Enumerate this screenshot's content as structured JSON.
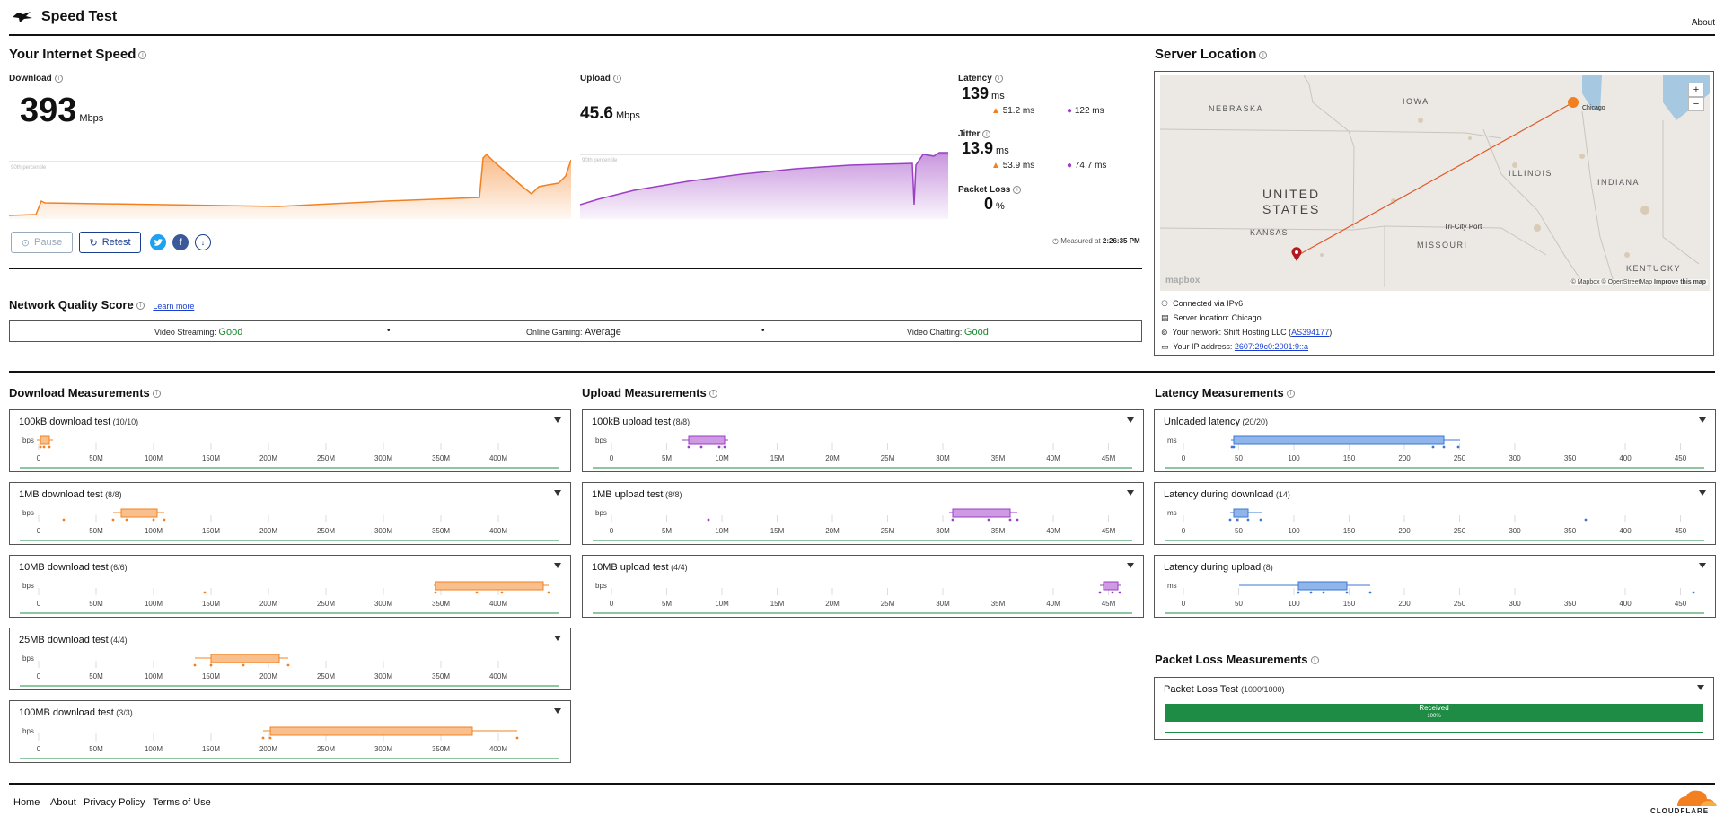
{
  "header": {
    "title": "Speed Test",
    "about": "About"
  },
  "speed": {
    "title": "Your Internet Speed",
    "download_label": "Download",
    "download_value": "393",
    "download_unit": "Mbps",
    "upload_label": "Upload",
    "upload_value": "45.6",
    "upload_unit": "Mbps",
    "percentile_label": "90th percentile",
    "latency_label": "Latency",
    "latency_value": "139",
    "latency_unit": "ms",
    "latency_down": "51.2 ms",
    "latency_up": "122 ms",
    "jitter_label": "Jitter",
    "jitter_value": "13.9",
    "jitter_unit": "ms",
    "jitter_down": "53.9 ms",
    "jitter_up": "74.7 ms",
    "loss_label": "Packet Loss",
    "loss_value": "0",
    "loss_unit": "%",
    "pause_label": "Pause",
    "retest_label": "Retest",
    "measured_prefix": "Measured at",
    "measured_time": "2:26:35 PM"
  },
  "server": {
    "title": "Server Location",
    "map_labels": {
      "nebraska": "NEBRASKA",
      "iowa": "IOWA",
      "united": "UNITED",
      "states": "STATES",
      "kansas": "KANSAS",
      "illinois": "ILLINOIS",
      "indiana": "INDIANA",
      "missouri": "MISSOURI",
      "kentucky": "KENTUCKY",
      "tricity": "Tri-City Port",
      "chicago": "Chicago",
      "zoom_in": "+",
      "zoom_out": "−",
      "mapbox": "mapbox",
      "attribution": "© Mapbox © OpenStreetMap",
      "improve": "Improve this map"
    },
    "connected": "Connected via IPv6",
    "location_prefix": "Server location:",
    "location_value": "Chicago",
    "network_prefix": "Your network:",
    "network_value": "Shift Hosting LLC (",
    "network_asn": "AS394177",
    "network_close": ")",
    "ip_prefix": "Your IP address:",
    "ip_value": "2607:29c0:2001:9::a"
  },
  "quality": {
    "title": "Network Quality Score",
    "learn_more": "Learn more",
    "streaming_label": "Video Streaming:",
    "streaming_value": "Good",
    "gaming_label": "Online Gaming:",
    "gaming_value": "Average",
    "chatting_label": "Video Chatting:",
    "chatting_value": "Good",
    "dot": "•"
  },
  "download_measurements": {
    "title": "Download Measurements",
    "unit": "bps",
    "ticks": [
      "0",
      "50M",
      "100M",
      "150M",
      "200M",
      "250M",
      "300M",
      "350M",
      "400M"
    ],
    "tests": [
      {
        "name": "100kB download test",
        "count": "(10/10)"
      },
      {
        "name": "1MB download test",
        "count": "(8/8)"
      },
      {
        "name": "10MB download test",
        "count": "(6/6)"
      },
      {
        "name": "25MB download test",
        "count": "(4/4)"
      },
      {
        "name": "100MB download test",
        "count": "(3/3)"
      }
    ]
  },
  "upload_measurements": {
    "title": "Upload Measurements",
    "unit": "bps",
    "ticks": [
      "0",
      "5M",
      "10M",
      "15M",
      "20M",
      "25M",
      "30M",
      "35M",
      "40M",
      "45M"
    ],
    "tests": [
      {
        "name": "100kB upload test",
        "count": "(8/8)"
      },
      {
        "name": "1MB upload test",
        "count": "(8/8)"
      },
      {
        "name": "10MB upload test",
        "count": "(4/4)"
      }
    ]
  },
  "latency_measurements": {
    "title": "Latency Measurements",
    "unit": "ms",
    "ticks": [
      "0",
      "50",
      "100",
      "150",
      "200",
      "250",
      "300",
      "350",
      "400",
      "450"
    ],
    "tests": [
      {
        "name": "Unloaded latency",
        "count": "(20/20)"
      },
      {
        "name": "Latency during download",
        "count": "(14)"
      },
      {
        "name": "Latency during upload",
        "count": "(8)"
      }
    ]
  },
  "packet_loss": {
    "title": "Packet Loss Measurements",
    "test_name": "Packet Loss Test",
    "test_count": "(1000/1000)",
    "received_label": "Received",
    "received_pct": "100%",
    "received_fraction": 1.0
  },
  "footer": {
    "home": "Home",
    "about": "About",
    "privacy": "Privacy Policy",
    "terms": "Terms of Use",
    "brand": "CLOUDFLARE"
  },
  "colors": {
    "download": "#f38020",
    "upload": "#9b3fc4",
    "latency": "#5b8fd8",
    "good": "#1a8a2e",
    "received": "#1e8c45"
  }
}
